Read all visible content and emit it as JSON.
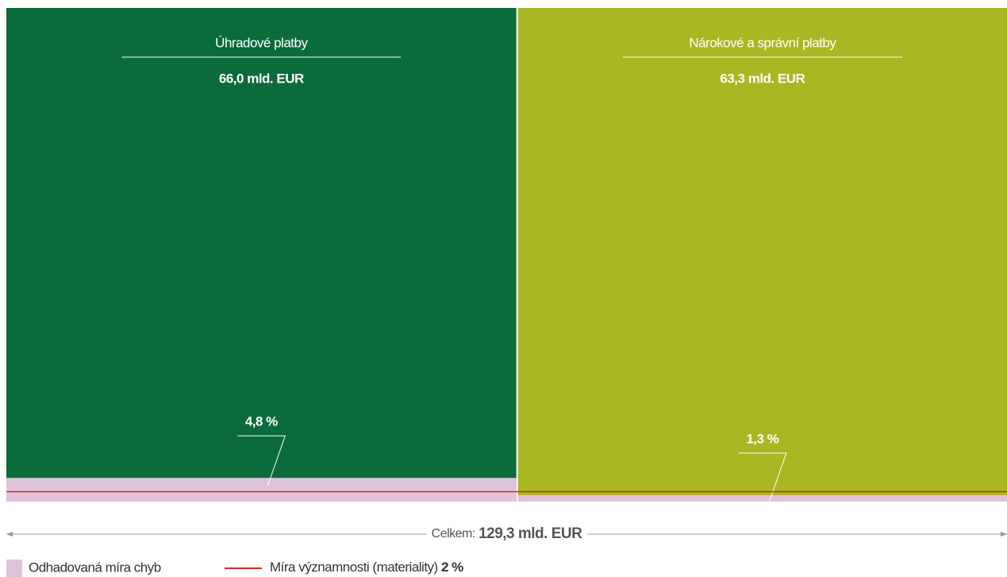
{
  "chart_data": {
    "type": "mosaic",
    "categories": [
      "Úhradové platby",
      "Nárokové a správní platby"
    ],
    "values": [
      66.0,
      63.3
    ],
    "value_labels": [
      "66,0 mld. EUR",
      "63,3 mld. EUR"
    ],
    "colors": [
      "#0b6b3a",
      "#a9b722"
    ],
    "error_rates": {
      "name": "Odhadovaná míra chyb",
      "color": "#dfc3dc",
      "values": [
        4.8,
        1.3
      ],
      "value_labels": [
        "4,8 %",
        "1,3 %"
      ]
    },
    "materiality": {
      "name": "Míra významnosti (materiality)",
      "value": 2,
      "value_label": "2 %",
      "color": "#d7262b"
    },
    "total": {
      "label": "Celkem:",
      "value": 129.3,
      "value_label": "129,3 mld. EUR"
    },
    "ylim": [
      0,
      100
    ]
  }
}
